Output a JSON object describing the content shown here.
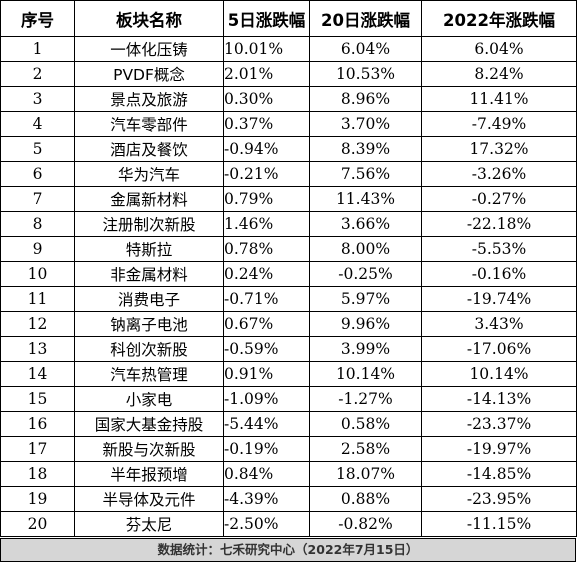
{
  "table": {
    "headers": {
      "no": "序号",
      "name": "板块名称",
      "d5": "5日涨跌幅",
      "d20": "20日涨跌幅",
      "ytd": "2022年涨跌幅"
    },
    "rows": [
      {
        "no": "1",
        "name": "一体化压铸",
        "d5": "10.01%",
        "d20": "6.04%",
        "ytd": "6.04%"
      },
      {
        "no": "2",
        "name": "PVDF概念",
        "d5": "2.01%",
        "d20": "10.53%",
        "ytd": "8.24%"
      },
      {
        "no": "3",
        "name": "景点及旅游",
        "d5": "0.30%",
        "d20": "8.96%",
        "ytd": "11.41%"
      },
      {
        "no": "4",
        "name": "汽车零部件",
        "d5": "0.37%",
        "d20": "3.70%",
        "ytd": "-7.49%"
      },
      {
        "no": "5",
        "name": "酒店及餐饮",
        "d5": "-0.94%",
        "d20": "8.39%",
        "ytd": "17.32%"
      },
      {
        "no": "6",
        "name": "华为汽车",
        "d5": "-0.21%",
        "d20": "7.56%",
        "ytd": "-3.26%"
      },
      {
        "no": "7",
        "name": "金属新材料",
        "d5": "0.79%",
        "d20": "11.43%",
        "ytd": "-0.27%"
      },
      {
        "no": "8",
        "name": "注册制次新股",
        "d5": "1.46%",
        "d20": "3.66%",
        "ytd": "-22.18%"
      },
      {
        "no": "9",
        "name": "特斯拉",
        "d5": "0.78%",
        "d20": "8.00%",
        "ytd": "-5.53%"
      },
      {
        "no": "10",
        "name": "非金属材料",
        "d5": "0.24%",
        "d20": "-0.25%",
        "ytd": "-0.16%"
      },
      {
        "no": "11",
        "name": "消费电子",
        "d5": "-0.71%",
        "d20": "5.97%",
        "ytd": "-19.74%"
      },
      {
        "no": "12",
        "name": "钠离子电池",
        "d5": "0.67%",
        "d20": "9.96%",
        "ytd": "3.43%"
      },
      {
        "no": "13",
        "name": "科创次新股",
        "d5": "-0.59%",
        "d20": "3.99%",
        "ytd": "-17.06%"
      },
      {
        "no": "14",
        "name": "汽车热管理",
        "d5": "0.91%",
        "d20": "10.14%",
        "ytd": "10.14%"
      },
      {
        "no": "15",
        "name": "小家电",
        "d5": "-1.09%",
        "d20": "-1.27%",
        "ytd": "-14.13%"
      },
      {
        "no": "16",
        "name": "国家大基金持股",
        "d5": "-5.44%",
        "d20": "0.58%",
        "ytd": "-23.37%"
      },
      {
        "no": "17",
        "name": "新股与次新股",
        "d5": "-0.19%",
        "d20": "2.58%",
        "ytd": "-19.97%"
      },
      {
        "no": "18",
        "name": "半年报预增",
        "d5": "0.84%",
        "d20": "18.07%",
        "ytd": "-14.85%"
      },
      {
        "no": "19",
        "name": "半导体及元件",
        "d5": "-4.39%",
        "d20": "0.88%",
        "ytd": "-23.95%"
      },
      {
        "no": "20",
        "name": "芬太尼",
        "d5": "-2.50%",
        "d20": "-0.82%",
        "ytd": "-11.15%"
      }
    ]
  },
  "footer": {
    "source": "数据统计：七禾研究中心（2022年7月15日）"
  }
}
